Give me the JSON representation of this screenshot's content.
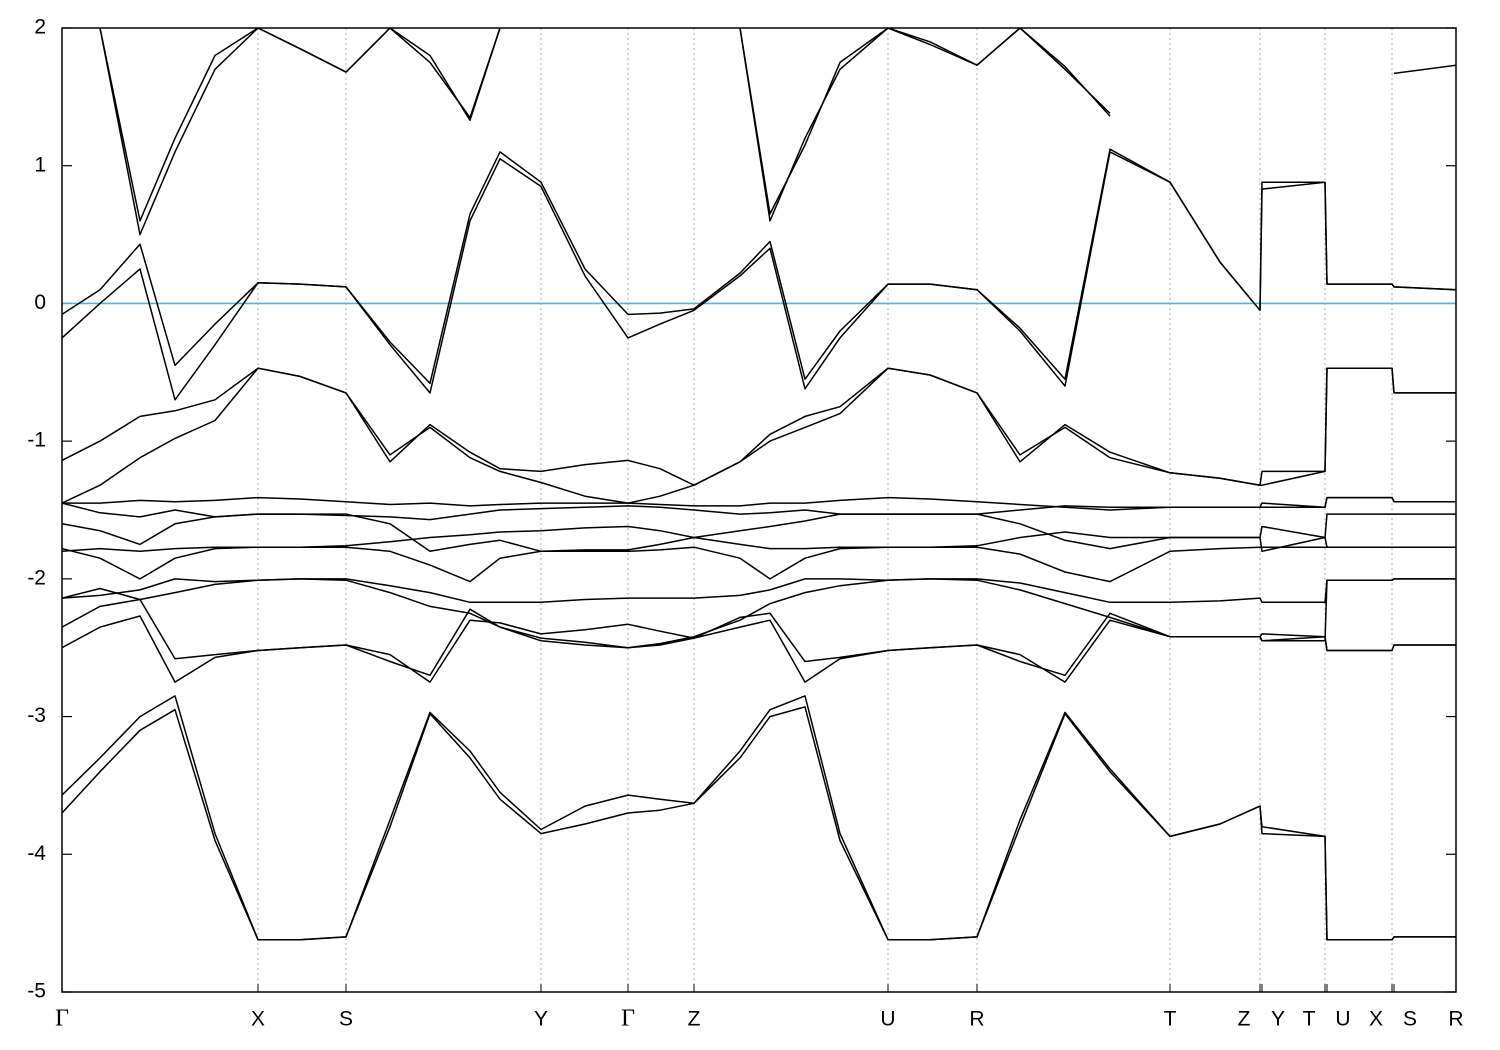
{
  "chart_data": {
    "type": "line",
    "x": [
      0,
      38,
      78,
      113,
      153,
      196,
      238,
      284,
      328,
      368,
      408,
      438,
      479,
      523,
      566,
      598,
      632,
      678,
      708,
      743,
      778,
      826,
      868,
      915,
      958,
      1003,
      1048,
      1108,
      1158,
      1198,
      1200,
      1263,
      1265,
      1330,
      1332,
      1394
    ],
    "xlim": [
      0,
      1394
    ],
    "xticks": [
      {
        "value": 0,
        "label": "Γ"
      },
      {
        "value": 196,
        "label": "X"
      },
      {
        "value": 284,
        "label": "S"
      },
      {
        "value": 479,
        "label": "Y"
      },
      {
        "value": 566,
        "label": "Γ"
      },
      {
        "value": 632,
        "label": "Z"
      },
      {
        "value": 826,
        "label": "U"
      },
      {
        "value": 915,
        "label": "R"
      },
      {
        "value": 1108,
        "label": "T"
      },
      {
        "value": 1198,
        "label": "Z"
      },
      {
        "value": 1200,
        "label": "Y"
      },
      {
        "value": 1263,
        "label": "T"
      },
      {
        "value": 1265,
        "label": "U"
      },
      {
        "value": 1330,
        "label": "X"
      },
      {
        "value": 1332,
        "label": "S"
      },
      {
        "value": 1394,
        "label": "R"
      }
    ],
    "ylim": [
      -5,
      2
    ],
    "yticks": [
      -5,
      -4,
      -3,
      -2,
      -1,
      0,
      1,
      2
    ],
    "grid": "x",
    "line_color": "#000000",
    "reference_line": {
      "value": 0,
      "color": "#5ab4d0"
    },
    "series": [
      {
        "values": [
          -3.7,
          -3.4,
          -3.1,
          -2.95,
          -3.9,
          -4.62,
          -4.62,
          -4.6,
          -3.8,
          -2.98,
          -3.3,
          -3.6,
          -3.85,
          -3.78,
          -3.7,
          -3.68,
          -3.63,
          -3.3,
          -3.0,
          -2.93,
          -3.9,
          -4.62,
          -4.62,
          -4.6,
          -3.8,
          -2.98,
          -3.4,
          -3.87,
          -3.78,
          -3.65,
          -3.85,
          -3.87,
          -4.62,
          -4.62,
          -4.6,
          -4.6
        ]
      },
      {
        "values": [
          -3.57,
          -3.3,
          -3.0,
          -2.85,
          -3.85,
          -4.62,
          -4.62,
          -4.6,
          -3.75,
          -2.97,
          -3.25,
          -3.55,
          -3.82,
          -3.65,
          -3.57,
          -3.6,
          -3.63,
          -3.25,
          -2.95,
          -2.85,
          -3.85,
          -4.62,
          -4.62,
          -4.6,
          -3.75,
          -2.97,
          -3.38,
          -3.87,
          -3.78,
          -3.65,
          -3.8,
          -3.87,
          -4.62,
          -4.62,
          -4.6,
          -4.6
        ]
      },
      {
        "values": [
          -2.5,
          -2.35,
          -2.27,
          -2.75,
          -2.57,
          -2.52,
          -2.5,
          -2.48,
          -2.55,
          -2.75,
          -2.3,
          -2.32,
          -2.4,
          -2.37,
          -2.33,
          -2.38,
          -2.43,
          -2.35,
          -2.3,
          -2.75,
          -2.58,
          -2.52,
          -2.5,
          -2.48,
          -2.55,
          -2.75,
          -2.3,
          -2.42,
          -2.42,
          -2.42,
          -2.4,
          -2.42,
          -2.52,
          -2.52,
          -2.48,
          -2.48
        ]
      },
      {
        "values": [
          -2.35,
          -2.2,
          -2.15,
          -2.58,
          -2.55,
          -2.52,
          -2.5,
          -2.48,
          -2.6,
          -2.7,
          -2.22,
          -2.35,
          -2.45,
          -2.48,
          -2.5,
          -2.48,
          -2.43,
          -2.28,
          -2.25,
          -2.6,
          -2.57,
          -2.52,
          -2.5,
          -2.48,
          -2.6,
          -2.7,
          -2.25,
          -2.42,
          -2.42,
          -2.42,
          -2.45,
          -2.42,
          -2.52,
          -2.52,
          -2.48,
          -2.48
        ]
      },
      {
        "values": [
          -2.14,
          -2.12,
          -2.08,
          -2.0,
          -2.02,
          -2.01,
          -2.0,
          -2.0,
          -2.05,
          -2.1,
          -2.17,
          -2.17,
          -2.17,
          -2.15,
          -2.14,
          -2.14,
          -2.14,
          -2.12,
          -2.08,
          -2.0,
          -2.0,
          -2.01,
          -2.0,
          -2.0,
          -2.03,
          -2.1,
          -2.17,
          -2.17,
          -2.16,
          -2.14,
          -2.17,
          -2.17,
          -2.01,
          -2.01,
          -2.0,
          -2.0
        ]
      },
      {
        "values": [
          -2.14,
          -2.07,
          -2.15,
          -2.1,
          -2.04,
          -2.01,
          -2.0,
          -2.01,
          -2.1,
          -2.2,
          -2.25,
          -2.35,
          -2.43,
          -2.46,
          -2.5,
          -2.47,
          -2.42,
          -2.3,
          -2.18,
          -2.1,
          -2.05,
          -2.01,
          -2.0,
          -2.01,
          -2.08,
          -2.18,
          -2.28,
          -2.42,
          -2.42,
          -2.42,
          -2.45,
          -2.45,
          -2.01,
          -2.01,
          -2.0,
          -2.0
        ]
      },
      {
        "values": [
          -1.78,
          -1.85,
          -2.0,
          -1.85,
          -1.78,
          -1.77,
          -1.77,
          -1.77,
          -1.8,
          -1.9,
          -2.02,
          -1.85,
          -1.8,
          -1.8,
          -1.8,
          -1.79,
          -1.77,
          -1.85,
          -2.0,
          -1.85,
          -1.78,
          -1.77,
          -1.77,
          -1.77,
          -1.82,
          -1.95,
          -2.02,
          -1.8,
          -1.78,
          -1.77,
          -1.77,
          -1.77,
          -1.77,
          -1.77,
          -1.77,
          -1.77
        ]
      },
      {
        "values": [
          -1.8,
          -1.78,
          -1.8,
          -1.78,
          -1.77,
          -1.77,
          -1.77,
          -1.76,
          -1.73,
          -1.7,
          -1.68,
          -1.66,
          -1.65,
          -1.63,
          -1.62,
          -1.65,
          -1.7,
          -1.75,
          -1.78,
          -1.78,
          -1.77,
          -1.77,
          -1.77,
          -1.76,
          -1.7,
          -1.66,
          -1.7,
          -1.7,
          -1.7,
          -1.7,
          -1.62,
          -1.7,
          -1.53,
          -1.53,
          -1.53,
          -1.53
        ]
      },
      {
        "values": [
          -1.6,
          -1.65,
          -1.75,
          -1.6,
          -1.55,
          -1.53,
          -1.53,
          -1.53,
          -1.6,
          -1.8,
          -1.75,
          -1.72,
          -1.8,
          -1.79,
          -1.79,
          -1.75,
          -1.7,
          -1.65,
          -1.62,
          -1.58,
          -1.53,
          -1.53,
          -1.53,
          -1.53,
          -1.6,
          -1.72,
          -1.78,
          -1.7,
          -1.7,
          -1.7,
          -1.8,
          -1.7,
          -1.77,
          -1.77,
          -1.77,
          -1.77
        ]
      },
      {
        "values": [
          -1.45,
          -1.45,
          -1.43,
          -1.44,
          -1.43,
          -1.41,
          -1.42,
          -1.44,
          -1.46,
          -1.45,
          -1.47,
          -1.46,
          -1.45,
          -1.45,
          -1.45,
          -1.46,
          -1.47,
          -1.47,
          -1.45,
          -1.45,
          -1.43,
          -1.41,
          -1.42,
          -1.44,
          -1.46,
          -1.48,
          -1.5,
          -1.48,
          -1.48,
          -1.48,
          -1.48,
          -1.48,
          -1.41,
          -1.41,
          -1.44,
          -1.44
        ]
      },
      {
        "values": [
          -1.45,
          -1.52,
          -1.55,
          -1.5,
          -1.55,
          -1.53,
          -1.53,
          -1.54,
          -1.55,
          -1.57,
          -1.53,
          -1.5,
          -1.49,
          -1.48,
          -1.47,
          -1.48,
          -1.5,
          -1.53,
          -1.52,
          -1.5,
          -1.53,
          -1.53,
          -1.53,
          -1.53,
          -1.5,
          -1.47,
          -1.48,
          -1.48,
          -1.48,
          -1.48,
          -1.45,
          -1.48,
          -1.41,
          -1.41,
          -1.44,
          -1.44
        ]
      },
      {
        "values": [
          -1.45,
          -1.32,
          -1.12,
          -0.98,
          -0.85,
          -0.47,
          -0.53,
          -0.65,
          -1.1,
          -0.9,
          -1.12,
          -1.22,
          -1.3,
          -1.4,
          -1.45,
          -1.4,
          -1.32,
          -1.15,
          -1.0,
          -0.9,
          -0.8,
          -0.47,
          -0.52,
          -0.65,
          -1.1,
          -0.9,
          -1.12,
          -1.23,
          -1.27,
          -1.32,
          -1.22,
          -1.22,
          -0.47,
          -0.47,
          -0.65,
          -0.65
        ]
      },
      {
        "values": [
          -1.14,
          -1.0,
          -0.82,
          -0.78,
          -0.7,
          -0.47,
          -0.53,
          -0.65,
          -1.15,
          -0.88,
          -1.08,
          -1.2,
          -1.22,
          -1.17,
          -1.14,
          -1.2,
          -1.32,
          -1.15,
          -0.95,
          -0.82,
          -0.75,
          -0.47,
          -0.52,
          -0.65,
          -1.15,
          -0.88,
          -1.08,
          -1.23,
          -1.27,
          -1.32,
          -1.32,
          -1.22,
          -0.47,
          -0.47,
          -0.65,
          -0.65
        ]
      },
      {
        "values": [
          -0.25,
          0.0,
          0.25,
          -0.7,
          -0.3,
          0.15,
          0.14,
          0.12,
          -0.3,
          -0.65,
          0.6,
          1.05,
          0.85,
          0.2,
          -0.25,
          -0.15,
          -0.05,
          0.2,
          0.4,
          -0.62,
          -0.25,
          0.14,
          0.14,
          0.1,
          -0.2,
          -0.6,
          1.1,
          0.88,
          0.3,
          -0.05,
          0.83,
          0.88,
          0.14,
          0.14,
          0.12,
          0.1
        ]
      },
      {
        "values": [
          -0.08,
          0.1,
          0.43,
          -0.45,
          -0.15,
          0.15,
          0.14,
          0.12,
          -0.28,
          -0.58,
          0.65,
          1.1,
          0.88,
          0.25,
          -0.08,
          -0.07,
          -0.04,
          0.22,
          0.45,
          -0.55,
          -0.2,
          0.14,
          0.14,
          0.1,
          -0.18,
          -0.55,
          1.12,
          0.88,
          0.3,
          -0.05,
          0.88,
          0.88,
          0.14,
          0.14,
          0.12,
          0.1
        ]
      },
      {
        "values": [
          null,
          2.0,
          0.5,
          1.1,
          1.7,
          2.0,
          1.85,
          1.68,
          2.0,
          1.75,
          1.35,
          2.0,
          null,
          null,
          null,
          null,
          null,
          2.0,
          0.6,
          1.2,
          1.7,
          2.0,
          1.88,
          1.73,
          2.0,
          1.7,
          1.38,
          null,
          null,
          null,
          null,
          null,
          null,
          null,
          1.67,
          1.73
        ]
      },
      {
        "values": [
          null,
          2.0,
          0.6,
          1.2,
          1.8,
          2.0,
          1.85,
          1.68,
          2.0,
          1.8,
          1.33,
          2.0,
          null,
          null,
          null,
          null,
          null,
          2.0,
          0.65,
          1.15,
          1.75,
          2.0,
          1.9,
          1.73,
          2.0,
          1.72,
          1.36,
          null,
          null,
          null,
          null,
          null,
          null,
          null,
          null,
          null
        ]
      }
    ]
  }
}
